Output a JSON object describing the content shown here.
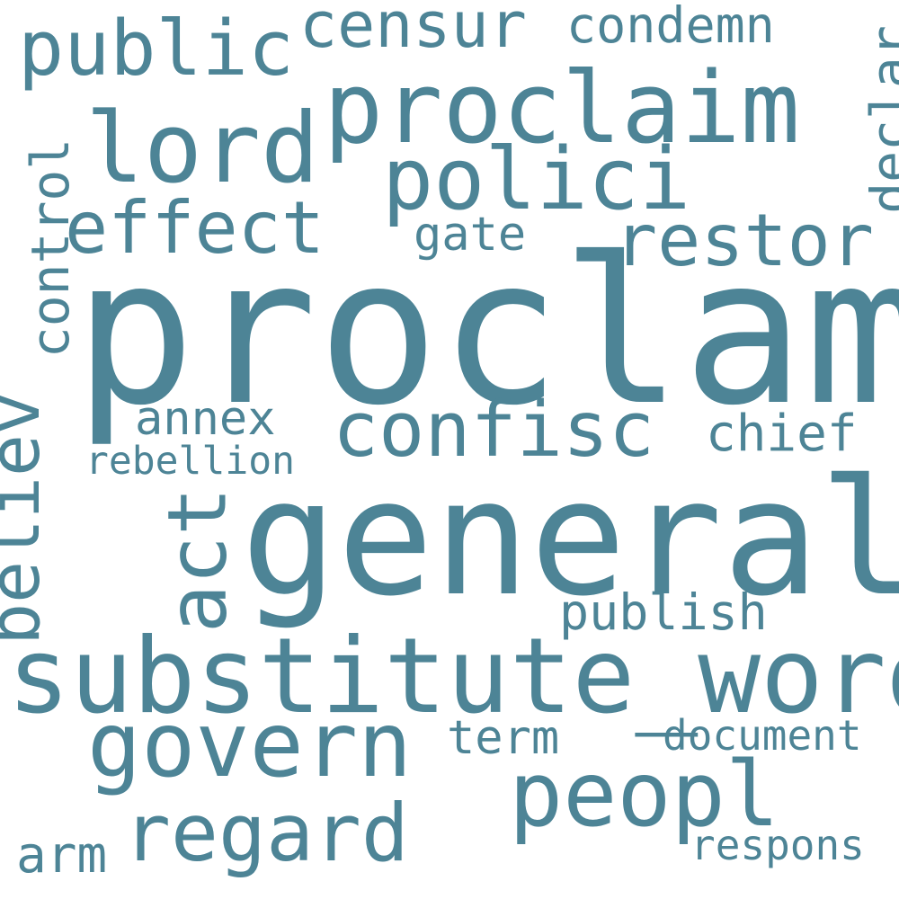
{
  "wordcloud": {
    "color": "#4d8496",
    "background": "#ffffff",
    "words": {
      "proclam": "proclam",
      "general": "general",
      "substitute_word": "substitute_word",
      "proclaim": "proclaim",
      "confisc": "confisc",
      "govern": "govern",
      "peopl": "peopl",
      "lord": "lord",
      "polici": "polici",
      "effect": "effect",
      "restor": "restor",
      "regard": "regard",
      "public": "public",
      "censur": "censur",
      "condemn": "condemn",
      "gate": "gate",
      "annex": "annex",
      "rebellion": "rebellion",
      "chief": "chief",
      "publish": "publish",
      "term": "term",
      "document": "document",
      "arm": "arm",
      "respons": "respons",
      "believ": "believ",
      "act": "act",
      "control": "control",
      "declar": "declar"
    }
  }
}
